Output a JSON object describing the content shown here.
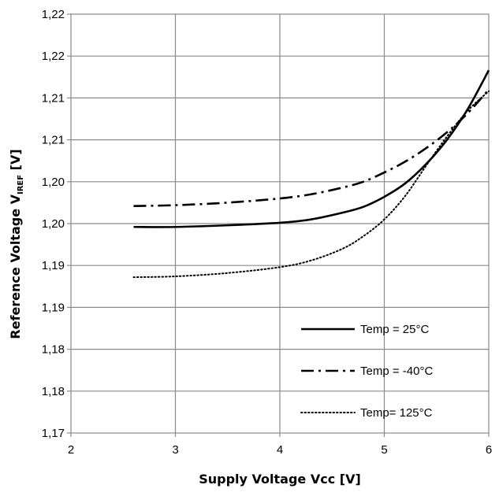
{
  "chart_data": {
    "type": "line",
    "title": "",
    "xlabel": "Supply Voltage Vcc [V]",
    "ylabel": "Reference Voltage V",
    "ylabel_subscript": "IREF",
    "ylabel_unit": " [V]",
    "xlim": [
      2,
      6
    ],
    "ylim": [
      1.17,
      1.22
    ],
    "x_ticks": [
      {
        "value": 2,
        "label": "2"
      },
      {
        "value": 3,
        "label": "3"
      },
      {
        "value": 4,
        "label": "4"
      },
      {
        "value": 5,
        "label": "5"
      },
      {
        "value": 6,
        "label": "6"
      }
    ],
    "y_ticks": [
      {
        "value": 1.17,
        "label": "1,17"
      },
      {
        "value": 1.175,
        "label": "1,18"
      },
      {
        "value": 1.18,
        "label": "1,18"
      },
      {
        "value": 1.185,
        "label": "1,19"
      },
      {
        "value": 1.19,
        "label": "1,19"
      },
      {
        "value": 1.195,
        "label": "1,20"
      },
      {
        "value": 1.2,
        "label": "1,20"
      },
      {
        "value": 1.205,
        "label": "1,21"
      },
      {
        "value": 1.21,
        "label": "1,21"
      },
      {
        "value": 1.215,
        "label": "1,22"
      },
      {
        "value": 1.22,
        "label": "1,22"
      }
    ],
    "grid": true,
    "legend_position": "bottom-right",
    "series": [
      {
        "name": "Temp = 25°C",
        "style": "solid",
        "x": [
          2.6,
          3.0,
          3.5,
          4.0,
          4.3,
          4.6,
          4.8,
          5.0,
          5.2,
          5.4,
          5.6,
          5.8,
          6.0
        ],
        "y": [
          1.1946,
          1.1946,
          1.1948,
          1.1951,
          1.1955,
          1.1963,
          1.197,
          1.1982,
          1.1998,
          1.2021,
          1.205,
          1.2087,
          1.2133
        ]
      },
      {
        "name": "Temp = -40°C",
        "style": "dashdot",
        "x": [
          2.6,
          3.0,
          3.5,
          4.0,
          4.3,
          4.6,
          4.8,
          5.0,
          5.2,
          5.4,
          5.6,
          5.8,
          6.0
        ],
        "y": [
          1.1971,
          1.1972,
          1.1975,
          1.198,
          1.1985,
          1.1993,
          1.2,
          1.2011,
          1.2024,
          1.204,
          1.2059,
          1.2082,
          1.211
        ]
      },
      {
        "name": "Temp= 125°C",
        "style": "dotted",
        "x": [
          2.6,
          3.0,
          3.5,
          4.0,
          4.3,
          4.6,
          4.8,
          5.0,
          5.2,
          5.4,
          5.6,
          5.8,
          6.0
        ],
        "y": [
          1.1886,
          1.1887,
          1.1891,
          1.1898,
          1.1906,
          1.192,
          1.1935,
          1.1955,
          1.1983,
          1.2019,
          1.2054,
          1.2085,
          1.2108
        ]
      }
    ]
  }
}
